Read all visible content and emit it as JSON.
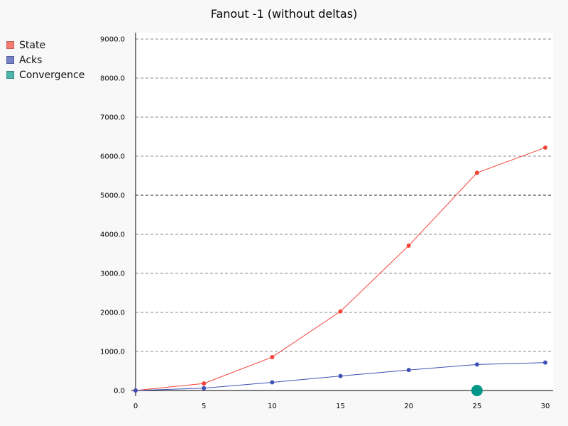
{
  "chart_data": {
    "type": "line",
    "title": "Fanout -1 (without deltas)",
    "x": [
      0,
      5,
      10,
      15,
      20,
      25,
      30
    ],
    "xticks": [
      "0",
      "5",
      "10",
      "15",
      "20",
      "25",
      "30"
    ],
    "yticks": [
      "0.0",
      "1000.0",
      "2000.0",
      "3000.0",
      "4000.0",
      "5000.0",
      "6000.0",
      "7000.0",
      "8000.0",
      "9000.0"
    ],
    "ylim": [
      0,
      9000
    ],
    "xlim": [
      0,
      30
    ],
    "grid": true,
    "legend_placement": "top-left",
    "series": [
      {
        "name": "State",
        "color": "#f44336",
        "values": [
          0,
          180,
          855,
          2025,
          3710,
          5575,
          6220
        ]
      },
      {
        "name": "Acks",
        "color": "#3f51b5",
        "values": [
          0,
          60,
          210,
          370,
          525,
          665,
          715
        ]
      }
    ],
    "markers": [
      {
        "name": "Convergence",
        "color": "#009688",
        "x": 25,
        "y": 0
      }
    ]
  }
}
